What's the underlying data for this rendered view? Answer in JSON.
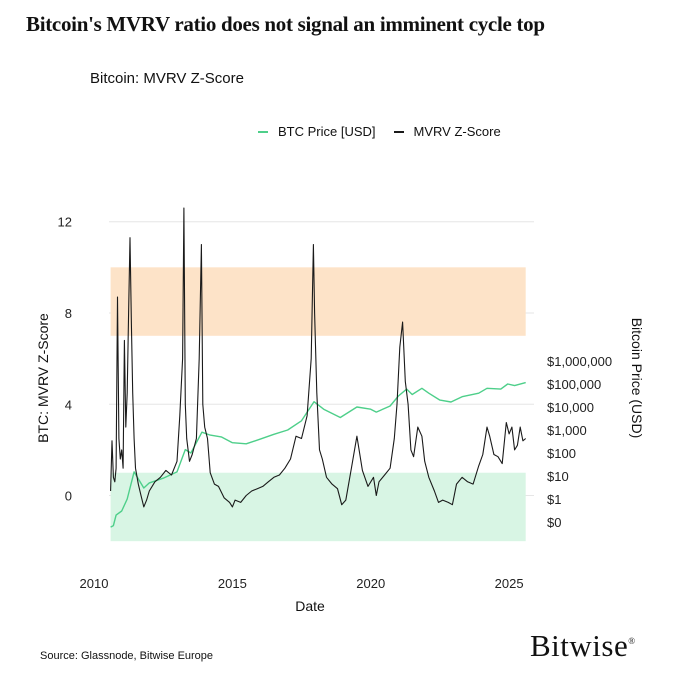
{
  "headline": "Bitcoin's MVRV ratio does not signal an imminent cycle top",
  "source": "Source: Glassnode, Bitwise Europe",
  "brand": "Bitwise",
  "brand_mark": "®",
  "colors": {
    "price_line": "#4ecf8a",
    "mvrv_line": "#1a1a1a",
    "top_zone": "#fde3c8",
    "bottom_zone": "#d8f5e4",
    "grid": "#e6e6e6"
  },
  "chart_data": {
    "type": "line",
    "title": "Bitcoin: MVRV Z-Score",
    "xlabel": "Date",
    "ylabel": "BTC: MVRV Z-Score",
    "y2label": "Bitcoin Price (USD)",
    "xlim": [
      2010,
      2025.9
    ],
    "ylim": [
      -3,
      12.6
    ],
    "x_ticks": [
      2010,
      2015,
      2020,
      2025
    ],
    "y_ticks": [
      0,
      4,
      8,
      12
    ],
    "y2_ticks": [
      {
        "value": 0,
        "label": "$0"
      },
      {
        "value": 1,
        "label": "$1"
      },
      {
        "value": 10,
        "label": "$10"
      },
      {
        "value": 100,
        "label": "$100"
      },
      {
        "value": 1000,
        "label": "$1,000"
      },
      {
        "value": 10000,
        "label": "$10,000"
      },
      {
        "value": 100000,
        "label": "$100,000"
      },
      {
        "value": 1000000,
        "label": "$1,000,000"
      }
    ],
    "zones": [
      {
        "name": "overvalued",
        "y_from": 7,
        "y_to": 10,
        "x_from": 2010.6,
        "x_to": 2025.6
      },
      {
        "name": "undervalued",
        "y_from": -2,
        "y_to": 1,
        "x_from": 2010.6,
        "x_to": 2025.6
      }
    ],
    "legend": [
      "BTC Price [USD]",
      "MVRV Z-Score"
    ],
    "series": [
      {
        "name": "MVRV Z-Score",
        "x": [
          2010.6,
          2010.65,
          2010.7,
          2010.75,
          2010.8,
          2010.85,
          2010.9,
          2010.95,
          2011.0,
          2011.05,
          2011.1,
          2011.15,
          2011.2,
          2011.25,
          2011.3,
          2011.35,
          2011.4,
          2011.45,
          2011.5,
          2011.6,
          2011.7,
          2011.8,
          2011.9,
          2012.0,
          2012.2,
          2012.4,
          2012.6,
          2012.8,
          2013.0,
          2013.1,
          2013.2,
          2013.25,
          2013.3,
          2013.35,
          2013.45,
          2013.55,
          2013.7,
          2013.8,
          2013.88,
          2013.93,
          2014.0,
          2014.1,
          2014.2,
          2014.35,
          2014.5,
          2014.7,
          2014.9,
          2015.0,
          2015.1,
          2015.3,
          2015.5,
          2015.7,
          2015.9,
          2016.1,
          2016.3,
          2016.5,
          2016.7,
          2016.9,
          2017.1,
          2017.3,
          2017.5,
          2017.7,
          2017.85,
          2017.93,
          2017.97,
          2018.05,
          2018.15,
          2018.25,
          2018.4,
          2018.6,
          2018.8,
          2018.95,
          2019.1,
          2019.3,
          2019.5,
          2019.7,
          2019.9,
          2020.1,
          2020.2,
          2020.3,
          2020.5,
          2020.7,
          2020.85,
          2020.95,
          2021.05,
          2021.15,
          2021.25,
          2021.35,
          2021.45,
          2021.55,
          2021.7,
          2021.85,
          2021.95,
          2022.1,
          2022.3,
          2022.45,
          2022.6,
          2022.8,
          2022.95,
          2023.1,
          2023.3,
          2023.5,
          2023.7,
          2023.9,
          2024.05,
          2024.2,
          2024.3,
          2024.45,
          2024.6,
          2024.75,
          2024.9,
          2025.0,
          2025.1,
          2025.2,
          2025.3,
          2025.4,
          2025.5,
          2025.6
        ],
        "values": [
          0.2,
          2.4,
          0.8,
          0.6,
          1.2,
          8.7,
          2.5,
          1.6,
          2.0,
          1.2,
          6.8,
          3.0,
          4.5,
          8.0,
          11.3,
          7.5,
          4.5,
          2.5,
          1.2,
          0.5,
          0.0,
          -0.5,
          -0.2,
          0.2,
          0.6,
          0.8,
          1.1,
          0.9,
          1.5,
          3.5,
          6.0,
          12.6,
          4.0,
          2.5,
          1.5,
          1.8,
          2.5,
          6.0,
          11.0,
          4.0,
          3.0,
          2.5,
          1.0,
          0.5,
          0.4,
          -0.1,
          -0.3,
          -0.5,
          -0.2,
          -0.3,
          0.0,
          0.2,
          0.3,
          0.4,
          0.6,
          0.8,
          0.9,
          1.2,
          1.6,
          2.6,
          2.5,
          3.5,
          6.0,
          11.0,
          8.0,
          4.5,
          2.0,
          1.6,
          0.8,
          0.5,
          0.3,
          -0.4,
          -0.2,
          1.2,
          2.6,
          1.1,
          0.4,
          0.8,
          0.0,
          0.6,
          0.9,
          1.2,
          2.5,
          4.0,
          6.5,
          7.6,
          5.0,
          4.0,
          2.0,
          1.7,
          3.0,
          2.6,
          1.5,
          0.8,
          0.2,
          -0.3,
          -0.2,
          -0.3,
          -0.4,
          0.5,
          0.8,
          0.6,
          0.5,
          1.3,
          1.8,
          3.0,
          2.6,
          1.8,
          1.7,
          1.4,
          3.2,
          2.7,
          3.0,
          2.0,
          2.2,
          3.0,
          2.4,
          2.5
        ]
      },
      {
        "name": "BTC Price [USD]",
        "x": [
          2010.6,
          2010.7,
          2010.8,
          2011.0,
          2011.2,
          2011.45,
          2011.8,
          2012.0,
          2012.5,
          2013.0,
          2013.3,
          2013.5,
          2013.9,
          2014.2,
          2014.6,
          2015.0,
          2015.5,
          2016.0,
          2016.5,
          2017.0,
          2017.5,
          2017.95,
          2018.3,
          2018.9,
          2019.5,
          2020.0,
          2020.2,
          2020.7,
          2021.0,
          2021.3,
          2021.5,
          2021.85,
          2022.1,
          2022.5,
          2022.9,
          2023.3,
          2023.9,
          2024.2,
          2024.7,
          2024.95,
          2025.2,
          2025.6
        ],
        "values": [
          0.06,
          0.07,
          0.2,
          0.3,
          1,
          15,
          3,
          5,
          8,
          15,
          140,
          100,
          800,
          600,
          500,
          280,
          250,
          400,
          650,
          1000,
          2500,
          17000,
          8000,
          3500,
          10000,
          8000,
          6000,
          11000,
          30000,
          60000,
          35000,
          65000,
          40000,
          20000,
          16500,
          28000,
          40000,
          65000,
          60000,
          100000,
          85000,
          115000
        ]
      }
    ]
  }
}
